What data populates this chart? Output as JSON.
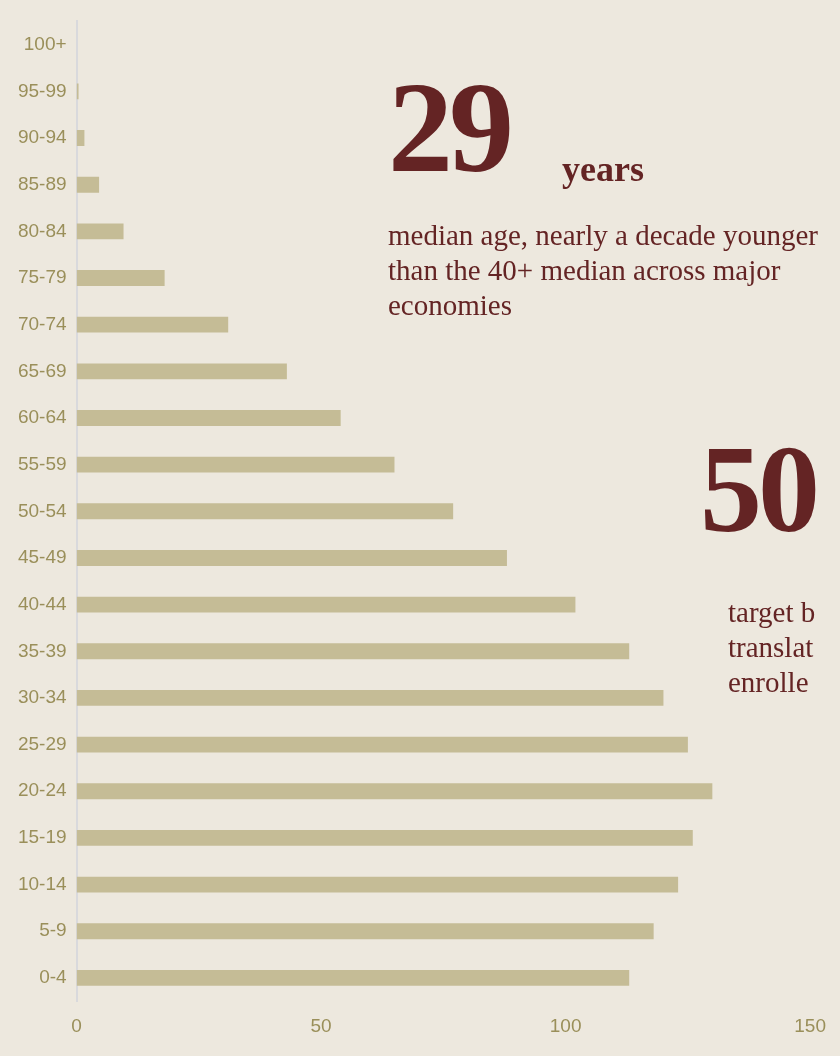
{
  "chart_data": {
    "type": "bar",
    "orientation": "horizontal",
    "categories": [
      "100+",
      "95-99",
      "90-94",
      "85-89",
      "80-84",
      "75-79",
      "70-74",
      "65-69",
      "60-64",
      "55-59",
      "50-54",
      "45-49",
      "40-44",
      "35-39",
      "30-34",
      "25-29",
      "20-24",
      "15-19",
      "10-14",
      "5-9",
      "0-4"
    ],
    "values": [
      0,
      0.4,
      1.6,
      4.6,
      9.6,
      18,
      31,
      43,
      54,
      65,
      77,
      88,
      102,
      113,
      120,
      125,
      130,
      126,
      123,
      118,
      113
    ],
    "color": "#c5bc96",
    "xlim": [
      0,
      150
    ],
    "xticks": [
      0,
      50,
      100,
      150
    ],
    "grid": false,
    "legend": false,
    "annotations": [
      "29",
      "years",
      "median age, nearly a decade younger than the 40+ median across major economies",
      "50",
      "target b translat enrolle"
    ]
  }
}
